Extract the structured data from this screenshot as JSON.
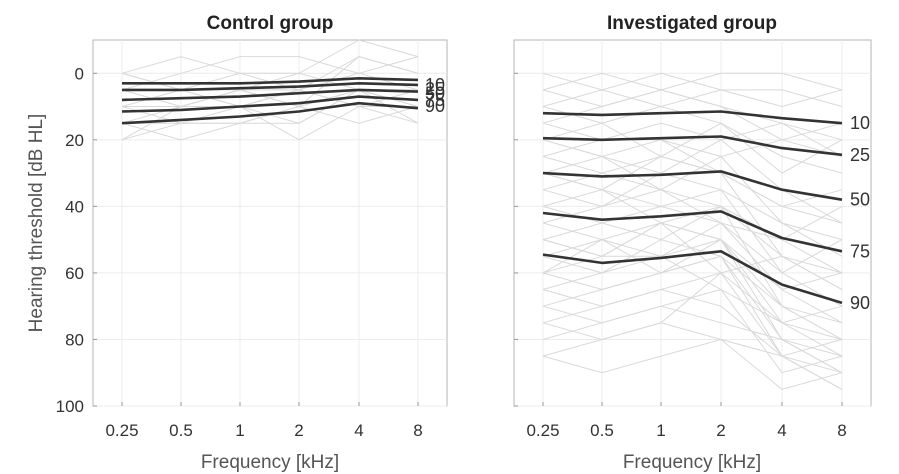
{
  "chart_data": [
    {
      "type": "line",
      "title": "Control group",
      "xlabel": "Frequency [kHz]",
      "ylabel": "Hearing threshold [dB HL]",
      "x": [
        "0.25",
        "0.5",
        "1",
        "2",
        "4",
        "8"
      ],
      "ylim": [
        100,
        -10
      ],
      "yticks": [
        0,
        20,
        40,
        60,
        80,
        100
      ],
      "y_inverted": true,
      "grid": true,
      "background_color": "#d9d9d9",
      "percentile_color": "#333333",
      "background_series": [
        [
          0,
          5,
          5,
          5,
          0,
          5
        ],
        [
          5,
          5,
          10,
          5,
          -5,
          0
        ],
        [
          10,
          10,
          5,
          0,
          5,
          10
        ],
        [
          15,
          10,
          10,
          15,
          5,
          5
        ],
        [
          20,
          15,
          15,
          10,
          15,
          10
        ],
        [
          5,
          0,
          -5,
          -5,
          0,
          -5
        ],
        [
          10,
          15,
          15,
          10,
          5,
          15
        ],
        [
          0,
          5,
          0,
          5,
          10,
          5
        ],
        [
          15,
          15,
          10,
          20,
          10,
          15
        ],
        [
          5,
          10,
          5,
          10,
          -5,
          0
        ],
        [
          10,
          5,
          10,
          5,
          10,
          10
        ],
        [
          20,
          10,
          5,
          10,
          5,
          5
        ],
        [
          0,
          -5,
          0,
          0,
          -10,
          -5
        ],
        [
          15,
          20,
          15,
          15,
          5,
          10
        ]
      ],
      "series": [
        {
          "name": "10",
          "values": [
            3,
            3,
            3,
            2.5,
            1.5,
            2
          ]
        },
        {
          "name": "25",
          "values": [
            5,
            5,
            4.5,
            4,
            3,
            3.5
          ]
        },
        {
          "name": "50",
          "values": [
            8,
            7.5,
            7,
            6,
            5,
            5.5
          ]
        },
        {
          "name": "75",
          "values": [
            11.5,
            11,
            10,
            9,
            7,
            8
          ]
        },
        {
          "name": "90",
          "values": [
            15,
            14,
            13,
            11.5,
            9,
            10.5
          ]
        }
      ]
    },
    {
      "type": "line",
      "title": "Investigated group",
      "xlabel": "Frequency [kHz]",
      "ylabel": "",
      "x": [
        "0.25",
        "0.5",
        "1",
        "2",
        "4",
        "8"
      ],
      "ylim": [
        100,
        -10
      ],
      "yticks": [
        0,
        20,
        40,
        60,
        80,
        100
      ],
      "y_inverted": true,
      "grid": true,
      "background_color": "#d9d9d9",
      "percentile_color": "#333333",
      "background_series": [
        [
          5,
          10,
          5,
          10,
          15,
          20
        ],
        [
          10,
          15,
          10,
          15,
          25,
          30
        ],
        [
          15,
          20,
          15,
          20,
          35,
          45
        ],
        [
          20,
          25,
          20,
          25,
          45,
          50
        ],
        [
          25,
          30,
          25,
          30,
          55,
          60
        ],
        [
          30,
          35,
          40,
          35,
          60,
          70
        ],
        [
          35,
          30,
          35,
          40,
          50,
          40
        ],
        [
          40,
          45,
          40,
          45,
          65,
          75
        ],
        [
          45,
          50,
          45,
          50,
          70,
          80
        ],
        [
          50,
          55,
          55,
          50,
          75,
          85
        ],
        [
          55,
          60,
          50,
          55,
          80,
          90
        ],
        [
          60,
          65,
          60,
          55,
          85,
          95
        ],
        [
          65,
          70,
          65,
          60,
          75,
          80
        ],
        [
          70,
          75,
          70,
          65,
          90,
          85
        ],
        [
          75,
          80,
          75,
          60,
          85,
          90
        ],
        [
          85,
          90,
          85,
          80,
          95,
          90
        ],
        [
          10,
          5,
          10,
          5,
          5,
          10
        ],
        [
          15,
          10,
          5,
          10,
          20,
          25
        ],
        [
          20,
          15,
          25,
          15,
          30,
          20
        ],
        [
          25,
          20,
          20,
          30,
          40,
          35
        ],
        [
          30,
          25,
          35,
          25,
          20,
          15
        ],
        [
          35,
          40,
          30,
          35,
          45,
          55
        ],
        [
          40,
          35,
          45,
          40,
          55,
          65
        ],
        [
          45,
          40,
          35,
          45,
          60,
          50
        ],
        [
          50,
          45,
          50,
          40,
          70,
          75
        ],
        [
          55,
          50,
          60,
          50,
          65,
          60
        ],
        [
          60,
          55,
          45,
          50,
          80,
          85
        ],
        [
          65,
          60,
          55,
          65,
          75,
          70
        ],
        [
          70,
          65,
          60,
          55,
          70,
          80
        ],
        [
          75,
          70,
          65,
          70,
          85,
          80
        ],
        [
          80,
          75,
          70,
          75,
          80,
          90
        ],
        [
          0,
          5,
          0,
          5,
          10,
          5
        ],
        [
          5,
          0,
          5,
          0,
          0,
          5
        ],
        [
          85,
          80,
          75,
          80,
          85,
          95
        ],
        [
          20,
          25,
          30,
          20,
          15,
          25
        ],
        [
          30,
          35,
          25,
          30,
          40,
          45
        ],
        [
          50,
          55,
          45,
          60,
          55,
          65
        ],
        [
          60,
          50,
          55,
          45,
          50,
          60
        ]
      ],
      "series": [
        {
          "name": "10",
          "values": [
            12,
            12.5,
            12,
            11.5,
            13.5,
            15
          ]
        },
        {
          "name": "25",
          "values": [
            19.5,
            20,
            19.5,
            19,
            22.5,
            24.5
          ]
        },
        {
          "name": "50",
          "values": [
            30,
            31,
            30.5,
            29.5,
            35,
            38
          ]
        },
        {
          "name": "75",
          "values": [
            42,
            44,
            43,
            41.5,
            49.5,
            53.5
          ]
        },
        {
          "name": "90",
          "values": [
            54.5,
            57,
            55.5,
            53.5,
            63.5,
            69
          ]
        }
      ]
    }
  ]
}
